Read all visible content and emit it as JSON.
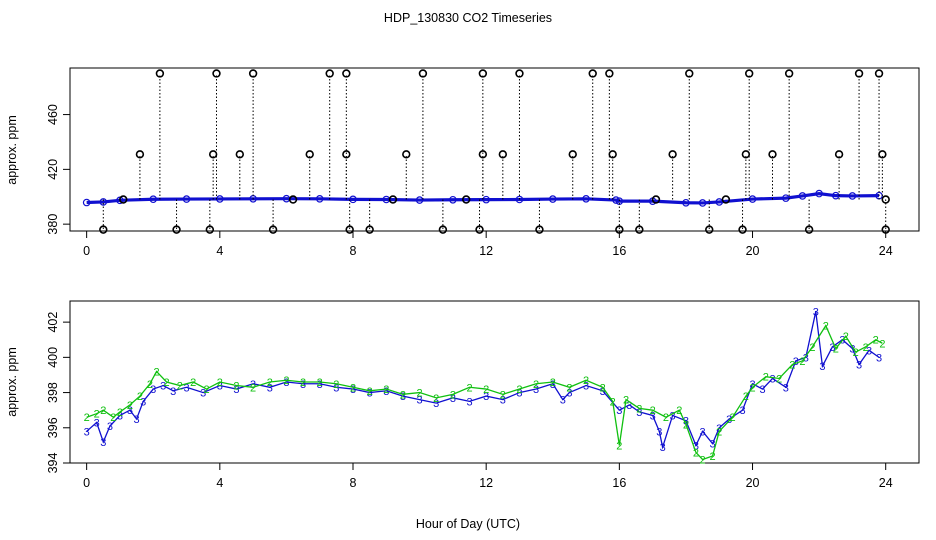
{
  "title": "HDP_130830  CO2 Timeseries",
  "xlabel": "Hour of Day (UTC)",
  "colors": {
    "black": "#000000",
    "blue": "#1010d0",
    "green": "#10c010",
    "cyan": "#20d0e0"
  },
  "chart_data": [
    {
      "type": "scatter",
      "ylabel": "approx. ppm",
      "xlim": [
        -0.5,
        25
      ],
      "ylim": [
        375,
        494
      ],
      "xticks": [
        "0",
        "4",
        "8",
        "12",
        "16",
        "20",
        "24"
      ],
      "yticks": [
        "380",
        "420",
        "460"
      ],
      "series": [
        {
          "name": "",
          "symbol": "line",
          "style": "solid",
          "color": "blue",
          "values": [
            [
              0,
              395.8
            ],
            [
              0.5,
              396.2
            ],
            [
              1,
              397.4
            ],
            [
              2,
              398.2
            ],
            [
              3,
              398.3
            ],
            [
              4,
              398.4
            ],
            [
              5,
              398.5
            ],
            [
              6,
              398.6
            ],
            [
              7,
              398.5
            ],
            [
              8,
              398.1
            ],
            [
              9,
              398.0
            ],
            [
              10,
              397.6
            ],
            [
              11,
              397.8
            ],
            [
              12,
              397.9
            ],
            [
              13,
              398.0
            ],
            [
              14,
              398.3
            ],
            [
              15,
              398.5
            ],
            [
              15.9,
              397.6
            ],
            [
              16,
              396.8
            ],
            [
              17,
              396.8
            ],
            [
              18,
              395.6
            ],
            [
              18.5,
              395.5
            ],
            [
              19,
              396.2
            ],
            [
              20,
              398.3
            ],
            [
              21,
              399.0
            ],
            [
              21.5,
              400.6
            ],
            [
              22,
              402.3
            ],
            [
              22.5,
              400.8
            ],
            [
              23,
              400.6
            ],
            [
              23.8,
              400.8
            ]
          ]
        },
        {
          "name": "",
          "symbol": "o",
          "style": "dotted",
          "color": "black",
          "values": [
            [
              0.5,
              376
            ],
            [
              1.1,
              398
            ],
            [
              1.6,
              431
            ],
            [
              2.2,
              490
            ],
            [
              2.7,
              376
            ],
            [
              3.7,
              376
            ],
            [
              3.8,
              431
            ],
            [
              3.9,
              490
            ],
            [
              4.6,
              431
            ],
            [
              5.0,
              490
            ],
            [
              5.6,
              376
            ],
            [
              6.2,
              398
            ],
            [
              6.7,
              431
            ],
            [
              7.3,
              490
            ],
            [
              7.8,
              490
            ],
            [
              7.8,
              431
            ],
            [
              7.9,
              376
            ],
            [
              8.5,
              376
            ],
            [
              9.2,
              398
            ],
            [
              9.6,
              431
            ],
            [
              10.1,
              490
            ],
            [
              10.7,
              376
            ],
            [
              11.4,
              398
            ],
            [
              11.8,
              376
            ],
            [
              11.9,
              490
            ],
            [
              11.9,
              431
            ],
            [
              12.5,
              431
            ],
            [
              13.0,
              490
            ],
            [
              13.6,
              376
            ],
            [
              14.6,
              431
            ],
            [
              15.2,
              490
            ],
            [
              15.7,
              490
            ],
            [
              15.8,
              431
            ],
            [
              16.0,
              376
            ],
            [
              16.6,
              376
            ],
            [
              17.1,
              398
            ],
            [
              17.6,
              431
            ],
            [
              18.1,
              490
            ],
            [
              18.7,
              376
            ],
            [
              19.2,
              398
            ],
            [
              19.7,
              376
            ],
            [
              19.8,
              431
            ],
            [
              19.9,
              490
            ],
            [
              20.6,
              431
            ],
            [
              21.1,
              490
            ],
            [
              21.7,
              376
            ],
            [
              22.6,
              431
            ],
            [
              23.2,
              490
            ],
            [
              23.8,
              490
            ],
            [
              23.9,
              431
            ],
            [
              24.0,
              376
            ],
            [
              24.0,
              398
            ]
          ]
        }
      ]
    },
    {
      "type": "line",
      "ylabel": "approx. ppm",
      "xlim": [
        -0.5,
        25
      ],
      "ylim": [
        394,
        403.2
      ],
      "xticks": [
        "0",
        "4",
        "8",
        "12",
        "16",
        "20",
        "24"
      ],
      "yticks": [
        "394",
        "396",
        "398",
        "400",
        "402"
      ],
      "series": [
        {
          "name": "",
          "symbol": "3",
          "color": "blue",
          "values": [
            [
              0,
              395.8
            ],
            [
              0.3,
              396.3
            ],
            [
              0.5,
              395.2
            ],
            [
              0.7,
              396.1
            ],
            [
              1,
              396.7
            ],
            [
              1.3,
              397.0
            ],
            [
              1.5,
              396.5
            ],
            [
              1.7,
              397.5
            ],
            [
              2,
              398.2
            ],
            [
              2.3,
              398.4
            ],
            [
              2.6,
              398.1
            ],
            [
              3,
              398.3
            ],
            [
              3.5,
              398.0
            ],
            [
              4,
              398.4
            ],
            [
              4.5,
              398.2
            ],
            [
              5,
              398.5
            ],
            [
              5.5,
              398.3
            ],
            [
              6,
              398.6
            ],
            [
              6.5,
              398.5
            ],
            [
              7,
              398.5
            ],
            [
              7.5,
              398.3
            ],
            [
              8,
              398.2
            ],
            [
              8.5,
              398.0
            ],
            [
              9,
              398.1
            ],
            [
              9.5,
              397.8
            ],
            [
              10,
              397.6
            ],
            [
              10.5,
              397.4
            ],
            [
              11,
              397.7
            ],
            [
              11.5,
              397.5
            ],
            [
              12,
              397.8
            ],
            [
              12.5,
              397.6
            ],
            [
              13,
              398.0
            ],
            [
              13.5,
              398.2
            ],
            [
              14,
              398.5
            ],
            [
              14.3,
              397.6
            ],
            [
              14.5,
              398.0
            ],
            [
              15,
              398.4
            ],
            [
              15.5,
              398.1
            ],
            [
              16,
              397.0
            ],
            [
              16.3,
              397.3
            ],
            [
              16.6,
              396.9
            ],
            [
              17,
              396.7
            ],
            [
              17.2,
              395.8
            ],
            [
              17.3,
              394.9
            ],
            [
              17.6,
              396.7
            ],
            [
              18,
              396.4
            ],
            [
              18.3,
              395.0
            ],
            [
              18.5,
              395.8
            ],
            [
              18.8,
              395.1
            ],
            [
              19,
              396.0
            ],
            [
              19.3,
              396.5
            ],
            [
              19.7,
              397.0
            ],
            [
              20,
              398.5
            ],
            [
              20.3,
              398.2
            ],
            [
              20.6,
              398.8
            ],
            [
              21,
              398.3
            ],
            [
              21.3,
              399.8
            ],
            [
              21.6,
              400.0
            ],
            [
              21.9,
              402.6
            ],
            [
              22.1,
              399.5
            ],
            [
              22.4,
              400.6
            ],
            [
              22.7,
              401.0
            ],
            [
              23,
              400.5
            ],
            [
              23.2,
              399.6
            ],
            [
              23.5,
              400.4
            ],
            [
              23.8,
              400.0
            ]
          ]
        },
        {
          "name": "",
          "symbol": "2",
          "color": "green",
          "values": [
            [
              0,
              396.6
            ],
            [
              0.3,
              396.8
            ],
            [
              0.5,
              397.0
            ],
            [
              0.8,
              396.6
            ],
            [
              1,
              396.9
            ],
            [
              1.3,
              397.3
            ],
            [
              1.6,
              397.8
            ],
            [
              1.9,
              398.5
            ],
            [
              2.1,
              399.2
            ],
            [
              2.4,
              398.6
            ],
            [
              2.8,
              398.4
            ],
            [
              3.2,
              398.6
            ],
            [
              3.6,
              398.2
            ],
            [
              4,
              398.6
            ],
            [
              4.5,
              398.4
            ],
            [
              5,
              398.3
            ],
            [
              5.5,
              398.6
            ],
            [
              6,
              398.7
            ],
            [
              6.5,
              398.6
            ],
            [
              7,
              398.6
            ],
            [
              7.5,
              398.5
            ],
            [
              8,
              398.3
            ],
            [
              8.5,
              398.1
            ],
            [
              9,
              398.2
            ],
            [
              9.5,
              397.9
            ],
            [
              10,
              398.0
            ],
            [
              10.5,
              397.7
            ],
            [
              11,
              397.9
            ],
            [
              11.5,
              398.3
            ],
            [
              12,
              398.2
            ],
            [
              12.5,
              397.9
            ],
            [
              13,
              398.2
            ],
            [
              13.5,
              398.5
            ],
            [
              14,
              398.6
            ],
            [
              14.5,
              398.3
            ],
            [
              15,
              398.7
            ],
            [
              15.5,
              398.3
            ],
            [
              15.8,
              397.5
            ],
            [
              16,
              395.0
            ],
            [
              16.2,
              397.6
            ],
            [
              16.6,
              397.1
            ],
            [
              17,
              397.0
            ],
            [
              17.4,
              396.6
            ],
            [
              17.8,
              397.0
            ],
            [
              18,
              396.2
            ],
            [
              18.3,
              394.6
            ],
            [
              18.5,
              394.2
            ],
            [
              18.8,
              394.4
            ],
            [
              19,
              395.8
            ],
            [
              19.4,
              396.6
            ],
            [
              19.8,
              397.8
            ],
            [
              20,
              398.3
            ],
            [
              20.4,
              398.9
            ],
            [
              20.8,
              398.8
            ],
            [
              21.2,
              399.6
            ],
            [
              21.5,
              399.8
            ],
            [
              21.8,
              400.6
            ],
            [
              22.2,
              401.8
            ],
            [
              22.5,
              400.5
            ],
            [
              22.8,
              401.2
            ],
            [
              23.1,
              400.3
            ],
            [
              23.4,
              400.6
            ],
            [
              23.7,
              401.0
            ],
            [
              23.9,
              400.8
            ]
          ]
        }
      ]
    }
  ]
}
